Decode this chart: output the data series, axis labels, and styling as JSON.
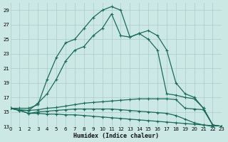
{
  "xlabel": "Humidex (Indice chaleur)",
  "background_color": "#cce8e5",
  "grid_color": "#aaccca",
  "line_color": "#1a6b5a",
  "xlim": [
    0,
    23
  ],
  "ylim": [
    13,
    30
  ],
  "yticks": [
    13,
    15,
    17,
    19,
    21,
    23,
    25,
    27,
    29
  ],
  "xticks": [
    0,
    1,
    2,
    3,
    4,
    5,
    6,
    7,
    8,
    9,
    10,
    11,
    12,
    13,
    14,
    15,
    16,
    17,
    18,
    19,
    20,
    21,
    22,
    23
  ],
  "x": [
    0,
    1,
    2,
    3,
    4,
    5,
    6,
    7,
    8,
    9,
    10,
    11,
    12,
    13,
    14,
    15,
    16,
    17,
    18,
    19,
    20,
    21,
    22,
    23
  ],
  "series": [
    [
      15.5,
      15.5,
      15.5,
      16.0,
      19.5,
      22.5,
      24.5,
      25.0,
      26.5,
      28.0,
      29.0,
      29.5,
      29.0,
      25.3,
      25.8,
      26.2,
      25.5,
      23.5,
      19.0,
      17.5,
      17.0,
      15.5,
      13.2,
      13.0
    ],
    [
      15.5,
      15.3,
      15.2,
      16.2,
      17.5,
      19.5,
      22.0,
      23.5,
      24.0,
      25.5,
      26.5,
      28.5,
      25.5,
      25.3,
      25.8,
      25.0,
      23.5,
      17.5,
      17.3,
      17.0,
      16.8,
      15.5,
      13.2,
      13.0
    ],
    [
      15.5,
      15.2,
      15.2,
      15.3,
      15.5,
      15.6,
      15.8,
      16.0,
      16.2,
      16.3,
      16.4,
      16.5,
      16.6,
      16.7,
      16.8,
      16.8,
      16.8,
      16.8,
      16.7,
      15.5,
      15.4,
      15.3,
      13.2,
      13.0
    ],
    [
      15.5,
      15.2,
      14.8,
      15.0,
      15.1,
      15.2,
      15.3,
      15.4,
      15.4,
      15.4,
      15.4,
      15.4,
      15.3,
      15.2,
      15.1,
      15.0,
      14.9,
      14.8,
      14.5,
      14.0,
      13.5,
      13.2,
      13.0,
      13.0
    ],
    [
      15.5,
      15.2,
      14.8,
      14.8,
      14.7,
      14.7,
      14.6,
      14.6,
      14.5,
      14.4,
      14.3,
      14.2,
      14.1,
      14.0,
      13.9,
      13.8,
      13.7,
      13.6,
      13.5,
      13.4,
      13.3,
      13.2,
      13.1,
      13.0
    ]
  ]
}
